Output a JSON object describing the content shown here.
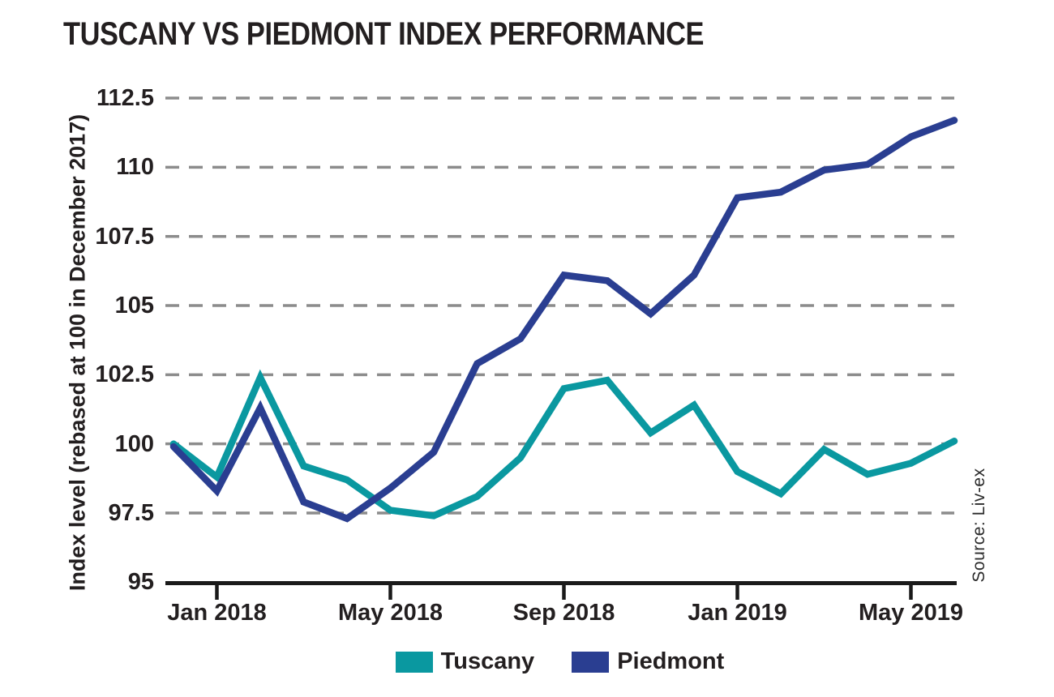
{
  "title": "TUSCANY VS PIEDMONT INDEX PERFORMANCE",
  "y_axis_label": "Index level (rebased at 100 in December 2017)",
  "source": "Source: Liv-ex",
  "colors": {
    "tuscany": "#0A98A0",
    "piedmont": "#2A3E91",
    "gridline": "#8c8c8c",
    "axis": "#1a1a1a",
    "text": "#231f20"
  },
  "legend": [
    {
      "label": "Tuscany",
      "color": "#0A98A0"
    },
    {
      "label": "Piedmont",
      "color": "#2A3E91"
    }
  ],
  "chart_data": {
    "type": "line",
    "title": "TUSCANY VS PIEDMONT INDEX PERFORMANCE",
    "xlabel": "",
    "ylabel": "Index level (rebased at 100 in December 2017)",
    "x": [
      "Dec 2017",
      "Jan 2018",
      "Feb 2018",
      "Mar 2018",
      "Apr 2018",
      "May 2018",
      "Jun 2018",
      "Jul 2018",
      "Aug 2018",
      "Sep 2018",
      "Oct 2018",
      "Nov 2018",
      "Dec 2018",
      "Jan 2019",
      "Feb 2019",
      "Mar 2019",
      "Apr 2019",
      "May 2019",
      "Jun 2019"
    ],
    "x_tick_labels": [
      {
        "index": 1,
        "label": "Jan 2018"
      },
      {
        "index": 5,
        "label": "May 2018"
      },
      {
        "index": 9,
        "label": "Sep 2018"
      },
      {
        "index": 13,
        "label": "Jan 2019"
      },
      {
        "index": 17,
        "label": "May 2019"
      }
    ],
    "series": [
      {
        "name": "Tuscany",
        "color": "#0A98A0",
        "values": [
          100.0,
          98.8,
          102.4,
          99.2,
          98.7,
          97.6,
          97.4,
          98.1,
          99.5,
          102.0,
          102.3,
          100.4,
          101.4,
          99.0,
          98.2,
          99.8,
          98.9,
          99.3,
          100.1
        ]
      },
      {
        "name": "Piedmont",
        "color": "#2A3E91",
        "values": [
          99.9,
          98.3,
          101.3,
          97.9,
          97.3,
          98.4,
          99.7,
          102.9,
          103.8,
          106.1,
          105.9,
          104.7,
          106.1,
          108.9,
          109.1,
          109.9,
          110.1,
          111.1,
          111.7
        ]
      }
    ],
    "ylim": [
      95,
      112.5
    ],
    "yticks": [
      95,
      97.5,
      100,
      102.5,
      105,
      107.5,
      110,
      112.5
    ],
    "grid": "horizontal dashed",
    "legend_position": "bottom-center",
    "source": "Source: Liv-ex"
  }
}
